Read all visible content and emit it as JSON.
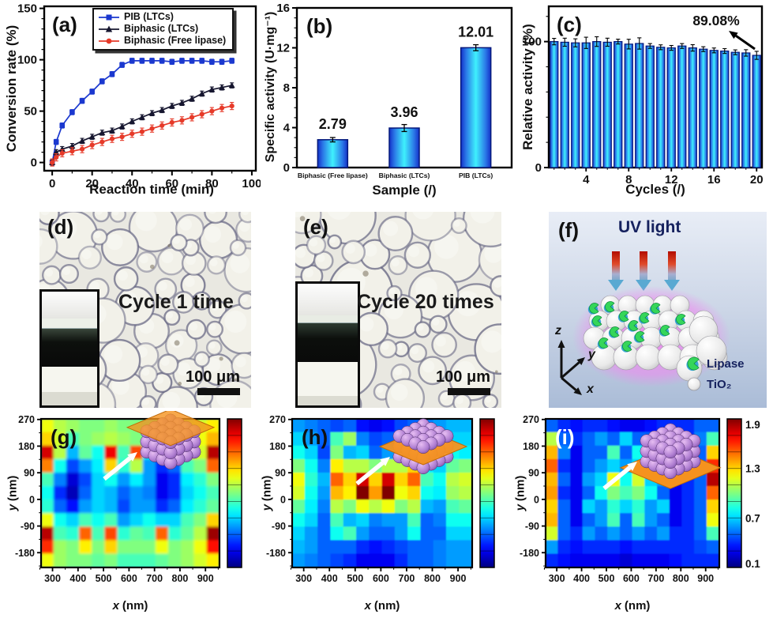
{
  "figure": {
    "kind": "scientific-multi-panel-figure",
    "panel_count": 9
  },
  "panels": {
    "a": {
      "label": "(a)",
      "xlabel": "Reaction time (min)",
      "ylabel": "Conversion rate (%)"
    },
    "b": {
      "label": "(b)",
      "xlabel": "Sample (/)",
      "ylabel": "Specific activity (U·mg⁻¹)"
    },
    "c": {
      "label": "(c)",
      "xlabel": "Cycles (/)",
      "ylabel": "Relative activity (%)",
      "annotation": "89.08%"
    },
    "d": {
      "label": "(d)",
      "caption": "Cycle 1 time",
      "scale_label": "100 μm"
    },
    "e": {
      "label": "(e)",
      "caption": "Cycle 20 times",
      "scale_label": "100 μm"
    },
    "f": {
      "label": "(f)",
      "title": "UV light",
      "legend": {
        "lipase": "Lipase",
        "tio2": "TiO₂"
      },
      "axes": {
        "z": "z",
        "y": "y",
        "x": "x"
      }
    },
    "g": {
      "label": "(g)",
      "xvar": "x",
      "yvar": "y",
      "unit": "(nm)"
    },
    "h": {
      "label": "(h)",
      "xvar": "x",
      "yvar": "y",
      "unit": "(nm)"
    },
    "i": {
      "label": "(i)",
      "xvar": "x",
      "yvar": "y",
      "unit": "(nm)"
    }
  },
  "chart_data": [
    {
      "id": "a",
      "type": "line",
      "title": "(a)",
      "xlabel": "Reaction time (min)",
      "ylabel": "Conversion rate (%)",
      "xlim": [
        0,
        100
      ],
      "ylim": [
        0,
        150
      ],
      "xticks": [
        0,
        20,
        40,
        60,
        80,
        100
      ],
      "yticks": [
        0,
        50,
        100,
        150
      ],
      "legend_position": "top-right",
      "x": [
        0,
        2,
        5,
        10,
        15,
        20,
        25,
        30,
        35,
        40,
        45,
        50,
        55,
        60,
        65,
        70,
        75,
        80,
        85,
        90
      ],
      "series": [
        {
          "name": "PIB (LTCs)",
          "color": "#1b38cf",
          "marker": "square",
          "err": 2.5,
          "values": [
            0,
            20,
            36,
            49,
            60,
            69,
            79,
            86,
            95,
            99,
            99,
            99,
            99,
            98,
            99,
            99,
            99,
            98,
            98,
            99
          ]
        },
        {
          "name": "Biphasic (LTCs)",
          "color": "#16162f",
          "marker": "triangle",
          "err": 2.5,
          "values": [
            0,
            10,
            13,
            16,
            21,
            25,
            29,
            31,
            35,
            40,
            44,
            48,
            51,
            55,
            58,
            62,
            67,
            71,
            73,
            75
          ]
        },
        {
          "name": "Biphasic (Free lipase)",
          "color": "#e63a29",
          "marker": "circle",
          "err": 3.5,
          "values": [
            0,
            5,
            9,
            11,
            13,
            17,
            20,
            23,
            25,
            28,
            30,
            33,
            36,
            39,
            41,
            44,
            47,
            50,
            53,
            55
          ]
        }
      ]
    },
    {
      "id": "b",
      "type": "bar",
      "title": "(b)",
      "xlabel": "Sample (/)",
      "ylabel": "Specific activity (U·mg⁻¹)",
      "categories": [
        "Biphasic (Free lipase)",
        "Biphasic (LTCs)",
        "PIB (LTCs)"
      ],
      "values": [
        2.79,
        3.96,
        12.01
      ],
      "errors": [
        0.22,
        0.35,
        0.3
      ],
      "value_labels": [
        "2.79",
        "3.96",
        "12.01"
      ],
      "ylim": [
        0,
        16
      ],
      "yticks": [
        0,
        4,
        8,
        12,
        16
      ],
      "bar_color_center": "#3ff0fd",
      "bar_color_edge": "#1430c8",
      "bar_stroke": "#04187a"
    },
    {
      "id": "c",
      "type": "bar",
      "title": "(c)",
      "xlabel": "Cycles (/)",
      "ylabel": "Relative activity (%)",
      "categories": [
        1,
        2,
        3,
        4,
        5,
        6,
        7,
        8,
        9,
        10,
        11,
        12,
        13,
        14,
        15,
        16,
        17,
        18,
        19,
        20
      ],
      "values": [
        100,
        99.5,
        99,
        99,
        100,
        99.5,
        100,
        98,
        98.5,
        96.5,
        95.5,
        95,
        96.5,
        95,
        94,
        93,
        92.5,
        91.5,
        91,
        89.08
      ],
      "errors": [
        2,
        2.5,
        2.5,
        3.5,
        3,
        2.5,
        1.5,
        3,
        3.5,
        1.5,
        1.5,
        1.5,
        1.5,
        2,
        1.5,
        1.5,
        1.5,
        1.5,
        2,
        2.5
      ],
      "ylim": [
        0,
        128
      ],
      "yticks": [
        0,
        100
      ],
      "xticks": [
        4,
        8,
        12,
        16,
        20
      ],
      "annotation": "89.08%",
      "bar_color_center": "#3ff0fd",
      "bar_color_edge": "#1430c8",
      "bar_stroke": "#04187a"
    },
    {
      "id": "g",
      "type": "heatmap",
      "xlabel": "x (nm)",
      "ylabel": "y (nm)",
      "x_range": [
        255,
        955
      ],
      "y_range": [
        -230,
        272
      ],
      "xticks": [
        300,
        400,
        500,
        600,
        700,
        800,
        900
      ],
      "yticks": [
        -180,
        -90,
        0,
        90,
        180,
        270
      ],
      "zlim": [
        0.1,
        1.9
      ],
      "colorbar_labels": [],
      "inset_plane": "top",
      "grid": [
        [
          1.2,
          1.1,
          1.05,
          1.0,
          1.0,
          1.05,
          1.0,
          1.0,
          0.95,
          1.0,
          1.05,
          1.1,
          1.15,
          1.25
        ],
        [
          1.3,
          1.15,
          0.9,
          1.0,
          1.05,
          1.1,
          1.05,
          1.0,
          0.9,
          0.9,
          1.0,
          1.1,
          1.2,
          1.35
        ],
        [
          1.75,
          1.1,
          0.65,
          0.95,
          0.8,
          1.7,
          0.9,
          1.55,
          0.8,
          0.7,
          1.0,
          1.5,
          1.15,
          1.8
        ],
        [
          1.45,
          0.8,
          0.45,
          0.6,
          0.75,
          1.3,
          0.85,
          1.1,
          0.6,
          0.4,
          0.5,
          0.9,
          1.0,
          1.5
        ],
        [
          0.9,
          0.55,
          0.25,
          0.45,
          0.7,
          0.8,
          0.6,
          0.75,
          0.6,
          0.3,
          0.4,
          0.75,
          0.85,
          1.0
        ],
        [
          0.8,
          0.4,
          0.2,
          0.5,
          0.7,
          0.65,
          0.5,
          0.6,
          0.55,
          0.3,
          0.4,
          0.7,
          0.8,
          0.9
        ],
        [
          0.85,
          0.5,
          0.35,
          0.6,
          0.7,
          0.65,
          0.45,
          0.6,
          0.6,
          0.4,
          0.5,
          0.75,
          0.85,
          0.95
        ],
        [
          1.2,
          0.8,
          0.7,
          0.9,
          0.8,
          0.9,
          0.6,
          0.7,
          0.8,
          0.7,
          0.7,
          0.9,
          1.0,
          1.3
        ],
        [
          1.8,
          0.9,
          0.85,
          1.5,
          0.9,
          1.55,
          0.85,
          0.95,
          0.9,
          1.5,
          0.85,
          0.95,
          1.1,
          1.85
        ],
        [
          1.6,
          1.05,
          1.0,
          1.25,
          1.0,
          1.3,
          1.0,
          1.0,
          1.0,
          1.2,
          1.0,
          1.05,
          1.2,
          1.65
        ],
        [
          1.2,
          1.05,
          1.0,
          1.0,
          0.95,
          1.0,
          0.9,
          0.9,
          0.9,
          0.95,
          1.0,
          1.05,
          1.15,
          1.25
        ]
      ]
    },
    {
      "id": "h",
      "type": "heatmap",
      "xlabel": "x (nm)",
      "ylabel": "y (nm)",
      "x_range": [
        255,
        955
      ],
      "y_range": [
        -230,
        272
      ],
      "xticks": [
        300,
        400,
        500,
        600,
        700,
        800,
        900
      ],
      "yticks": [
        -180,
        -90,
        0,
        90,
        180,
        270
      ],
      "zlim": [
        0.1,
        1.9
      ],
      "colorbar_labels": [],
      "inset_plane": "middle",
      "grid": [
        [
          0.6,
          0.55,
          0.5,
          0.45,
          0.5,
          0.35,
          0.3,
          0.35,
          0.45,
          0.5,
          0.55,
          0.6,
          0.65,
          0.65
        ],
        [
          0.7,
          0.6,
          0.5,
          0.9,
          1.05,
          0.55,
          0.45,
          0.5,
          0.6,
          0.75,
          0.5,
          0.55,
          0.7,
          0.7
        ],
        [
          0.8,
          0.7,
          0.45,
          1.0,
          0.65,
          0.7,
          0.5,
          0.6,
          0.55,
          1.0,
          0.45,
          0.6,
          0.8,
          0.75
        ],
        [
          1.0,
          0.8,
          0.55,
          1.25,
          1.1,
          1.1,
          1.0,
          1.1,
          1.1,
          1.3,
          0.75,
          0.7,
          0.95,
          1.0
        ],
        [
          1.2,
          0.85,
          0.65,
          1.5,
          1.3,
          1.75,
          1.3,
          1.75,
          1.3,
          1.5,
          0.9,
          0.8,
          1.1,
          1.15
        ],
        [
          1.15,
          0.8,
          0.6,
          1.35,
          1.25,
          1.9,
          1.4,
          1.9,
          1.2,
          1.3,
          0.8,
          0.75,
          1.05,
          1.1
        ],
        [
          0.95,
          0.75,
          0.55,
          1.1,
          1.0,
          1.2,
          1.1,
          1.2,
          1.0,
          1.1,
          0.65,
          0.6,
          0.9,
          0.95
        ],
        [
          0.8,
          0.7,
          0.5,
          0.9,
          0.65,
          0.7,
          0.55,
          0.6,
          0.6,
          0.9,
          0.5,
          0.55,
          0.8,
          0.8
        ],
        [
          0.7,
          0.6,
          0.5,
          0.8,
          0.9,
          0.6,
          0.5,
          0.5,
          0.6,
          0.8,
          0.5,
          0.5,
          0.7,
          0.7
        ],
        [
          0.65,
          0.6,
          0.5,
          0.5,
          0.5,
          0.4,
          0.35,
          0.4,
          0.45,
          0.5,
          0.5,
          0.55,
          0.6,
          0.6
        ],
        [
          0.6,
          0.55,
          0.5,
          0.45,
          0.4,
          0.3,
          0.3,
          0.3,
          0.4,
          0.5,
          0.5,
          0.55,
          0.6,
          0.6
        ]
      ]
    },
    {
      "id": "i",
      "type": "heatmap",
      "xlabel": "x (nm)",
      "ylabel": "y (nm)",
      "x_range": [
        255,
        955
      ],
      "y_range": [
        -230,
        272
      ],
      "xticks": [
        300,
        400,
        500,
        600,
        700,
        800,
        900
      ],
      "yticks": [
        -180,
        -90,
        0,
        90,
        180,
        270
      ],
      "zlim": [
        0.1,
        1.9
      ],
      "colorbar_labels": [
        1.9,
        1.3,
        0.7,
        0.1
      ],
      "inset_plane": "bottom",
      "grid": [
        [
          0.5,
          0.4,
          0.35,
          0.4,
          0.4,
          0.35,
          0.3,
          0.3,
          0.35,
          0.4,
          0.4,
          0.4,
          0.5,
          0.5
        ],
        [
          1.1,
          0.5,
          0.4,
          0.5,
          0.6,
          0.5,
          0.7,
          0.5,
          0.5,
          0.5,
          0.4,
          0.4,
          0.55,
          0.9
        ],
        [
          1.35,
          0.55,
          0.3,
          0.5,
          0.5,
          0.9,
          0.5,
          0.8,
          0.5,
          0.5,
          0.3,
          0.4,
          0.5,
          1.3
        ],
        [
          1.5,
          0.4,
          0.3,
          0.5,
          0.6,
          0.7,
          0.6,
          0.7,
          0.6,
          0.5,
          0.3,
          0.4,
          0.5,
          1.6
        ],
        [
          1.35,
          0.5,
          0.3,
          0.6,
          0.7,
          1.2,
          0.8,
          1.15,
          0.7,
          0.6,
          0.3,
          0.4,
          0.5,
          1.8
        ],
        [
          1.4,
          0.4,
          0.3,
          0.5,
          0.8,
          1.0,
          0.9,
          1.0,
          0.8,
          0.5,
          0.3,
          0.4,
          0.5,
          1.5
        ],
        [
          1.3,
          0.5,
          0.3,
          0.7,
          0.6,
          0.85,
          0.7,
          0.85,
          0.6,
          0.7,
          0.3,
          0.4,
          0.5,
          1.3
        ],
        [
          1.35,
          0.5,
          0.3,
          0.5,
          0.6,
          0.9,
          0.5,
          0.9,
          0.6,
          0.5,
          0.3,
          0.4,
          0.5,
          1.2
        ],
        [
          1.15,
          0.5,
          0.4,
          0.6,
          0.5,
          0.6,
          0.5,
          0.6,
          0.5,
          0.6,
          0.4,
          0.4,
          0.5,
          0.9
        ],
        [
          0.6,
          0.4,
          0.35,
          0.4,
          0.4,
          0.4,
          0.35,
          0.4,
          0.4,
          0.4,
          0.4,
          0.4,
          0.45,
          0.5
        ],
        [
          0.4,
          0.35,
          0.3,
          0.3,
          0.3,
          0.3,
          0.25,
          0.3,
          0.3,
          0.3,
          0.35,
          0.4,
          0.4,
          0.4
        ]
      ]
    }
  ]
}
